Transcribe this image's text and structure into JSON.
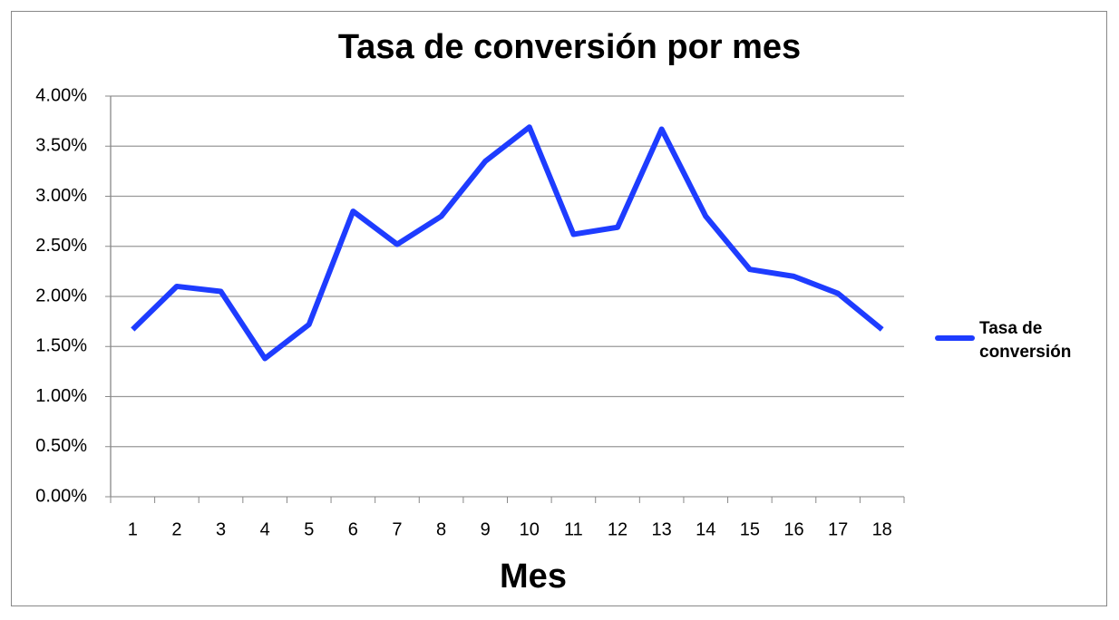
{
  "chart_data": {
    "type": "line",
    "title": "Tasa de conversión por mes",
    "x_label": "Mes",
    "categories": [
      "1",
      "2",
      "3",
      "4",
      "5",
      "6",
      "7",
      "8",
      "9",
      "10",
      "11",
      "12",
      "13",
      "14",
      "15",
      "16",
      "17",
      "18"
    ],
    "series": [
      {
        "name": "Tasa de conversión",
        "color": "#1e3cff",
        "values": [
          1.67,
          2.1,
          2.05,
          1.38,
          1.72,
          2.85,
          2.52,
          2.8,
          3.35,
          3.69,
          2.62,
          2.69,
          3.67,
          2.8,
          2.27,
          2.2,
          2.03,
          1.67
        ]
      }
    ],
    "ylim": [
      0,
      4
    ],
    "yticks": [
      {
        "value": 0,
        "label": "0.00%"
      },
      {
        "value": 0.5,
        "label": "0.50%"
      },
      {
        "value": 1,
        "label": "1.00%"
      },
      {
        "value": 1.5,
        "label": "1.50%"
      },
      {
        "value": 2,
        "label": "2.00%"
      },
      {
        "value": 2.5,
        "label": "2.50%"
      },
      {
        "value": 3,
        "label": "3.00%"
      },
      {
        "value": 3.5,
        "label": "3.50%"
      },
      {
        "value": 4,
        "label": "4.00%"
      }
    ],
    "grid": true,
    "legend": "right"
  }
}
